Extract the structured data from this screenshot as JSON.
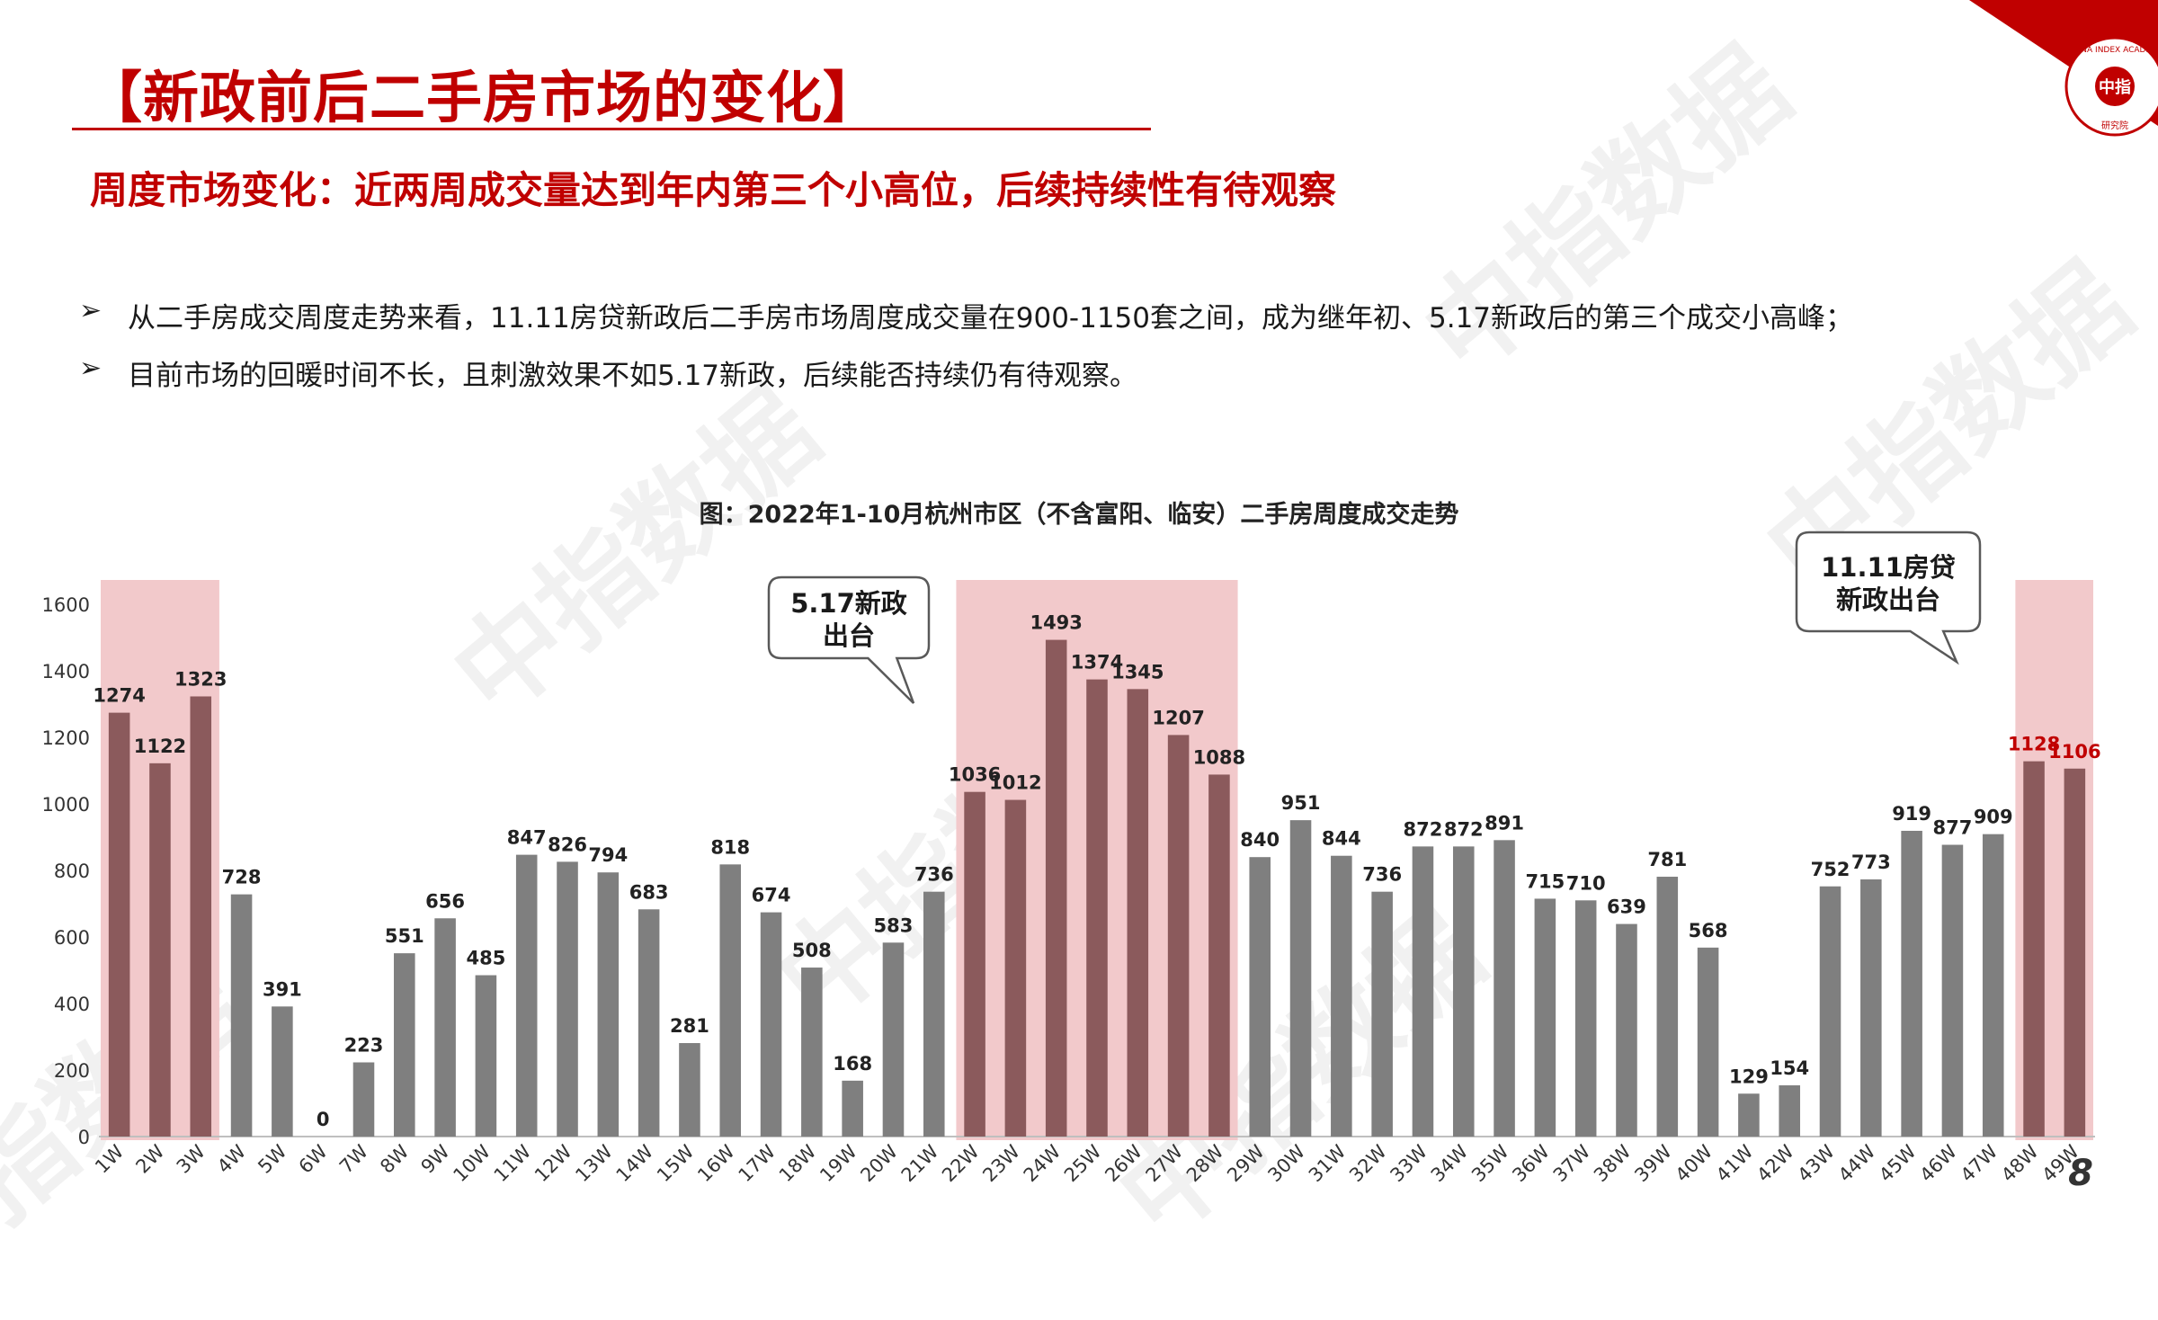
{
  "header": {
    "title": "【新政前后二手房市场的变化】",
    "subtitle": "周度市场变化：近两周成交量达到年内第三个小高位，后续持续性有待观察"
  },
  "bullets": [
    "从二手房成交周度走势来看，11.11房贷新政后二手房市场周度成交量在900-1150套之间，成为继年初、5.17新政后的第三个成交小高峰；",
    "目前市场的回暖时间不长，且刺激效果不如5.17新政，后续能否持续仍有待观察。"
  ],
  "bullet_marker": "➢",
  "page_number": "8",
  "logo": {
    "text_top": "CHINA INDEX ACADEMY",
    "text_mid": "中指",
    "text_bottom": "研究院"
  },
  "watermarks": [
    "中指数据",
    "中指数据 CREIS"
  ],
  "colors": {
    "accent": "#c00000",
    "bar_gray": "#7f7f7f",
    "bar_highlight": "#8b5a5c",
    "shade": "#f2c9cb",
    "label_red": "#c00000"
  },
  "chart_data": {
    "type": "bar",
    "title": "图：2022年1-10月杭州市区（不含富阳、临安）二手房周度成交走势",
    "categories": [
      "1W",
      "2W",
      "3W",
      "4W",
      "5W",
      "6W",
      "7W",
      "8W",
      "9W",
      "10W",
      "11W",
      "12W",
      "13W",
      "14W",
      "15W",
      "16W",
      "17W",
      "18W",
      "19W",
      "20W",
      "21W",
      "22W",
      "23W",
      "24W",
      "25W",
      "26W",
      "27W",
      "28W",
      "29W",
      "30W",
      "31W",
      "32W",
      "33W",
      "34W",
      "35W",
      "36W",
      "37W",
      "38W",
      "39W",
      "40W",
      "41W",
      "42W",
      "43W",
      "44W",
      "45W",
      "46W",
      "47W",
      "48W",
      "49W"
    ],
    "values": [
      1274,
      1122,
      1323,
      728,
      391,
      0,
      223,
      551,
      656,
      485,
      847,
      826,
      794,
      683,
      281,
      818,
      674,
      508,
      168,
      583,
      736,
      1036,
      1012,
      1493,
      1374,
      1345,
      1207,
      1088,
      840,
      951,
      844,
      736,
      872,
      872,
      891,
      715,
      710,
      639,
      781,
      568,
      129,
      154,
      752,
      773,
      919,
      877,
      909,
      1128,
      1106
    ],
    "value_labels": [
      "1274",
      "1122",
      "1323",
      "728",
      "391",
      "0",
      "223",
      "551",
      "656",
      "485",
      "847",
      "826",
      "794",
      "683",
      "281",
      "818",
      "674",
      "508",
      "168",
      "583",
      "736",
      "1036",
      "1012",
      "1493",
      "1374",
      "1345",
      "1207",
      "1088",
      "840",
      "951",
      "844",
      "736",
      "872",
      "872",
      "891",
      "715",
      "710",
      "639",
      "781",
      "568",
      "129",
      "154",
      "752",
      "773",
      "919",
      "877",
      "909",
      "1128",
      "1106"
    ],
    "ylim": [
      0,
      1600
    ],
    "yticks": [
      "0",
      "200",
      "400",
      "600",
      "800",
      "1000",
      "1200",
      "1400",
      "1600"
    ],
    "highlight_ranges": [
      [
        1,
        3
      ],
      [
        22,
        28
      ],
      [
        48,
        49
      ]
    ],
    "red_labels": [
      48,
      49
    ],
    "annotations": [
      {
        "text_line1": "5.17新政",
        "text_line2": "出台"
      },
      {
        "text_line1": "11.11房贷",
        "text_line2": "新政出台"
      }
    ],
    "xlabel": "",
    "ylabel": "",
    "grid": false
  }
}
